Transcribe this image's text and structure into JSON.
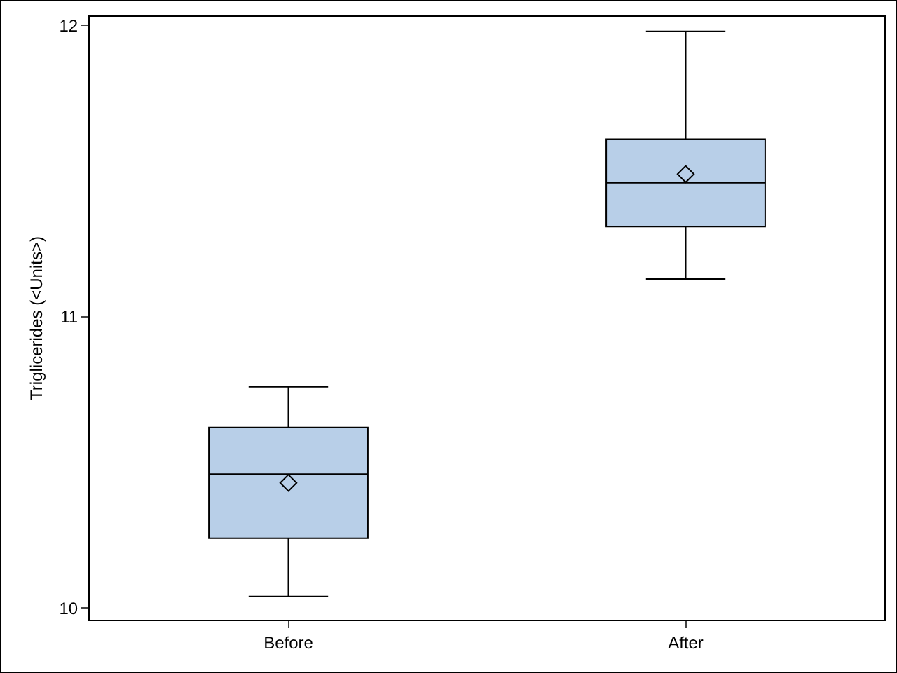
{
  "chart_data": {
    "type": "box",
    "ylabel": "Triglicerides (<Units>)",
    "categories": [
      "Before",
      "After"
    ],
    "boxes": [
      {
        "low": 10.04,
        "q1": 10.24,
        "median": 10.46,
        "q3": 10.62,
        "high": 10.76,
        "mean": 10.43
      },
      {
        "low": 11.13,
        "q1": 11.31,
        "median": 11.46,
        "q3": 11.61,
        "high": 11.98,
        "mean": 11.49
      }
    ],
    "color": "#b8cfe8",
    "ylim": [
      9.96,
      12.03
    ],
    "yticks": [
      10,
      11,
      12
    ],
    "grid": false,
    "marker": "diamond"
  }
}
